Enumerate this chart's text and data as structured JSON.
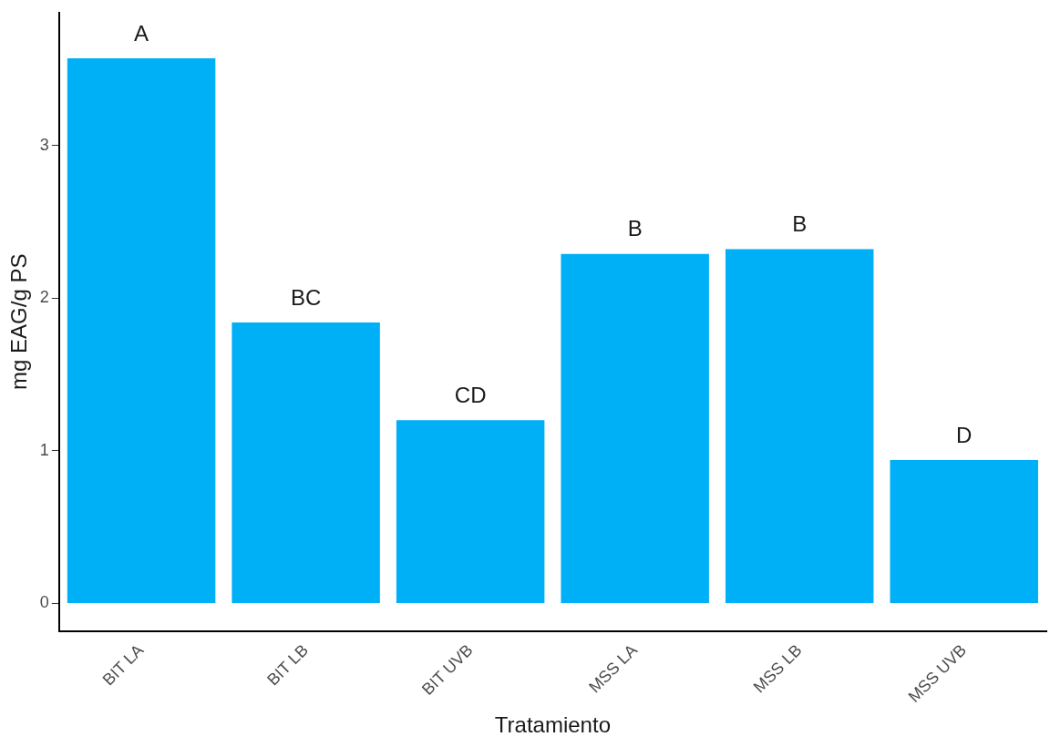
{
  "chart_data": {
    "type": "bar",
    "xlabel": "Tratamiento",
    "ylabel": "mg EAG/g PS",
    "categories": [
      "BIT LA",
      "BIT LB",
      "BIT UVB",
      "MSS LA",
      "MSS LB",
      "MSS UVB"
    ],
    "values": [
      3.57,
      1.84,
      1.2,
      2.29,
      2.32,
      0.94
    ],
    "color": "#00b0f6",
    "ylim": [
      -0.18,
      3.87
    ],
    "yticks": [
      0,
      1,
      2,
      3
    ],
    "grid": false,
    "legend": false,
    "annotations": [
      {
        "text": "A",
        "x": "BIT LA",
        "y": 3.57
      },
      {
        "text": "BC",
        "x": "BIT LB",
        "y": 1.84
      },
      {
        "text": "CD",
        "x": "BIT UVB",
        "y": 1.2
      },
      {
        "text": "B",
        "x": "MSS LA",
        "y": 2.29
      },
      {
        "text": "B",
        "x": "MSS LB",
        "y": 2.32
      },
      {
        "text": "D",
        "x": "MSS UVB",
        "y": 0.94
      }
    ]
  }
}
